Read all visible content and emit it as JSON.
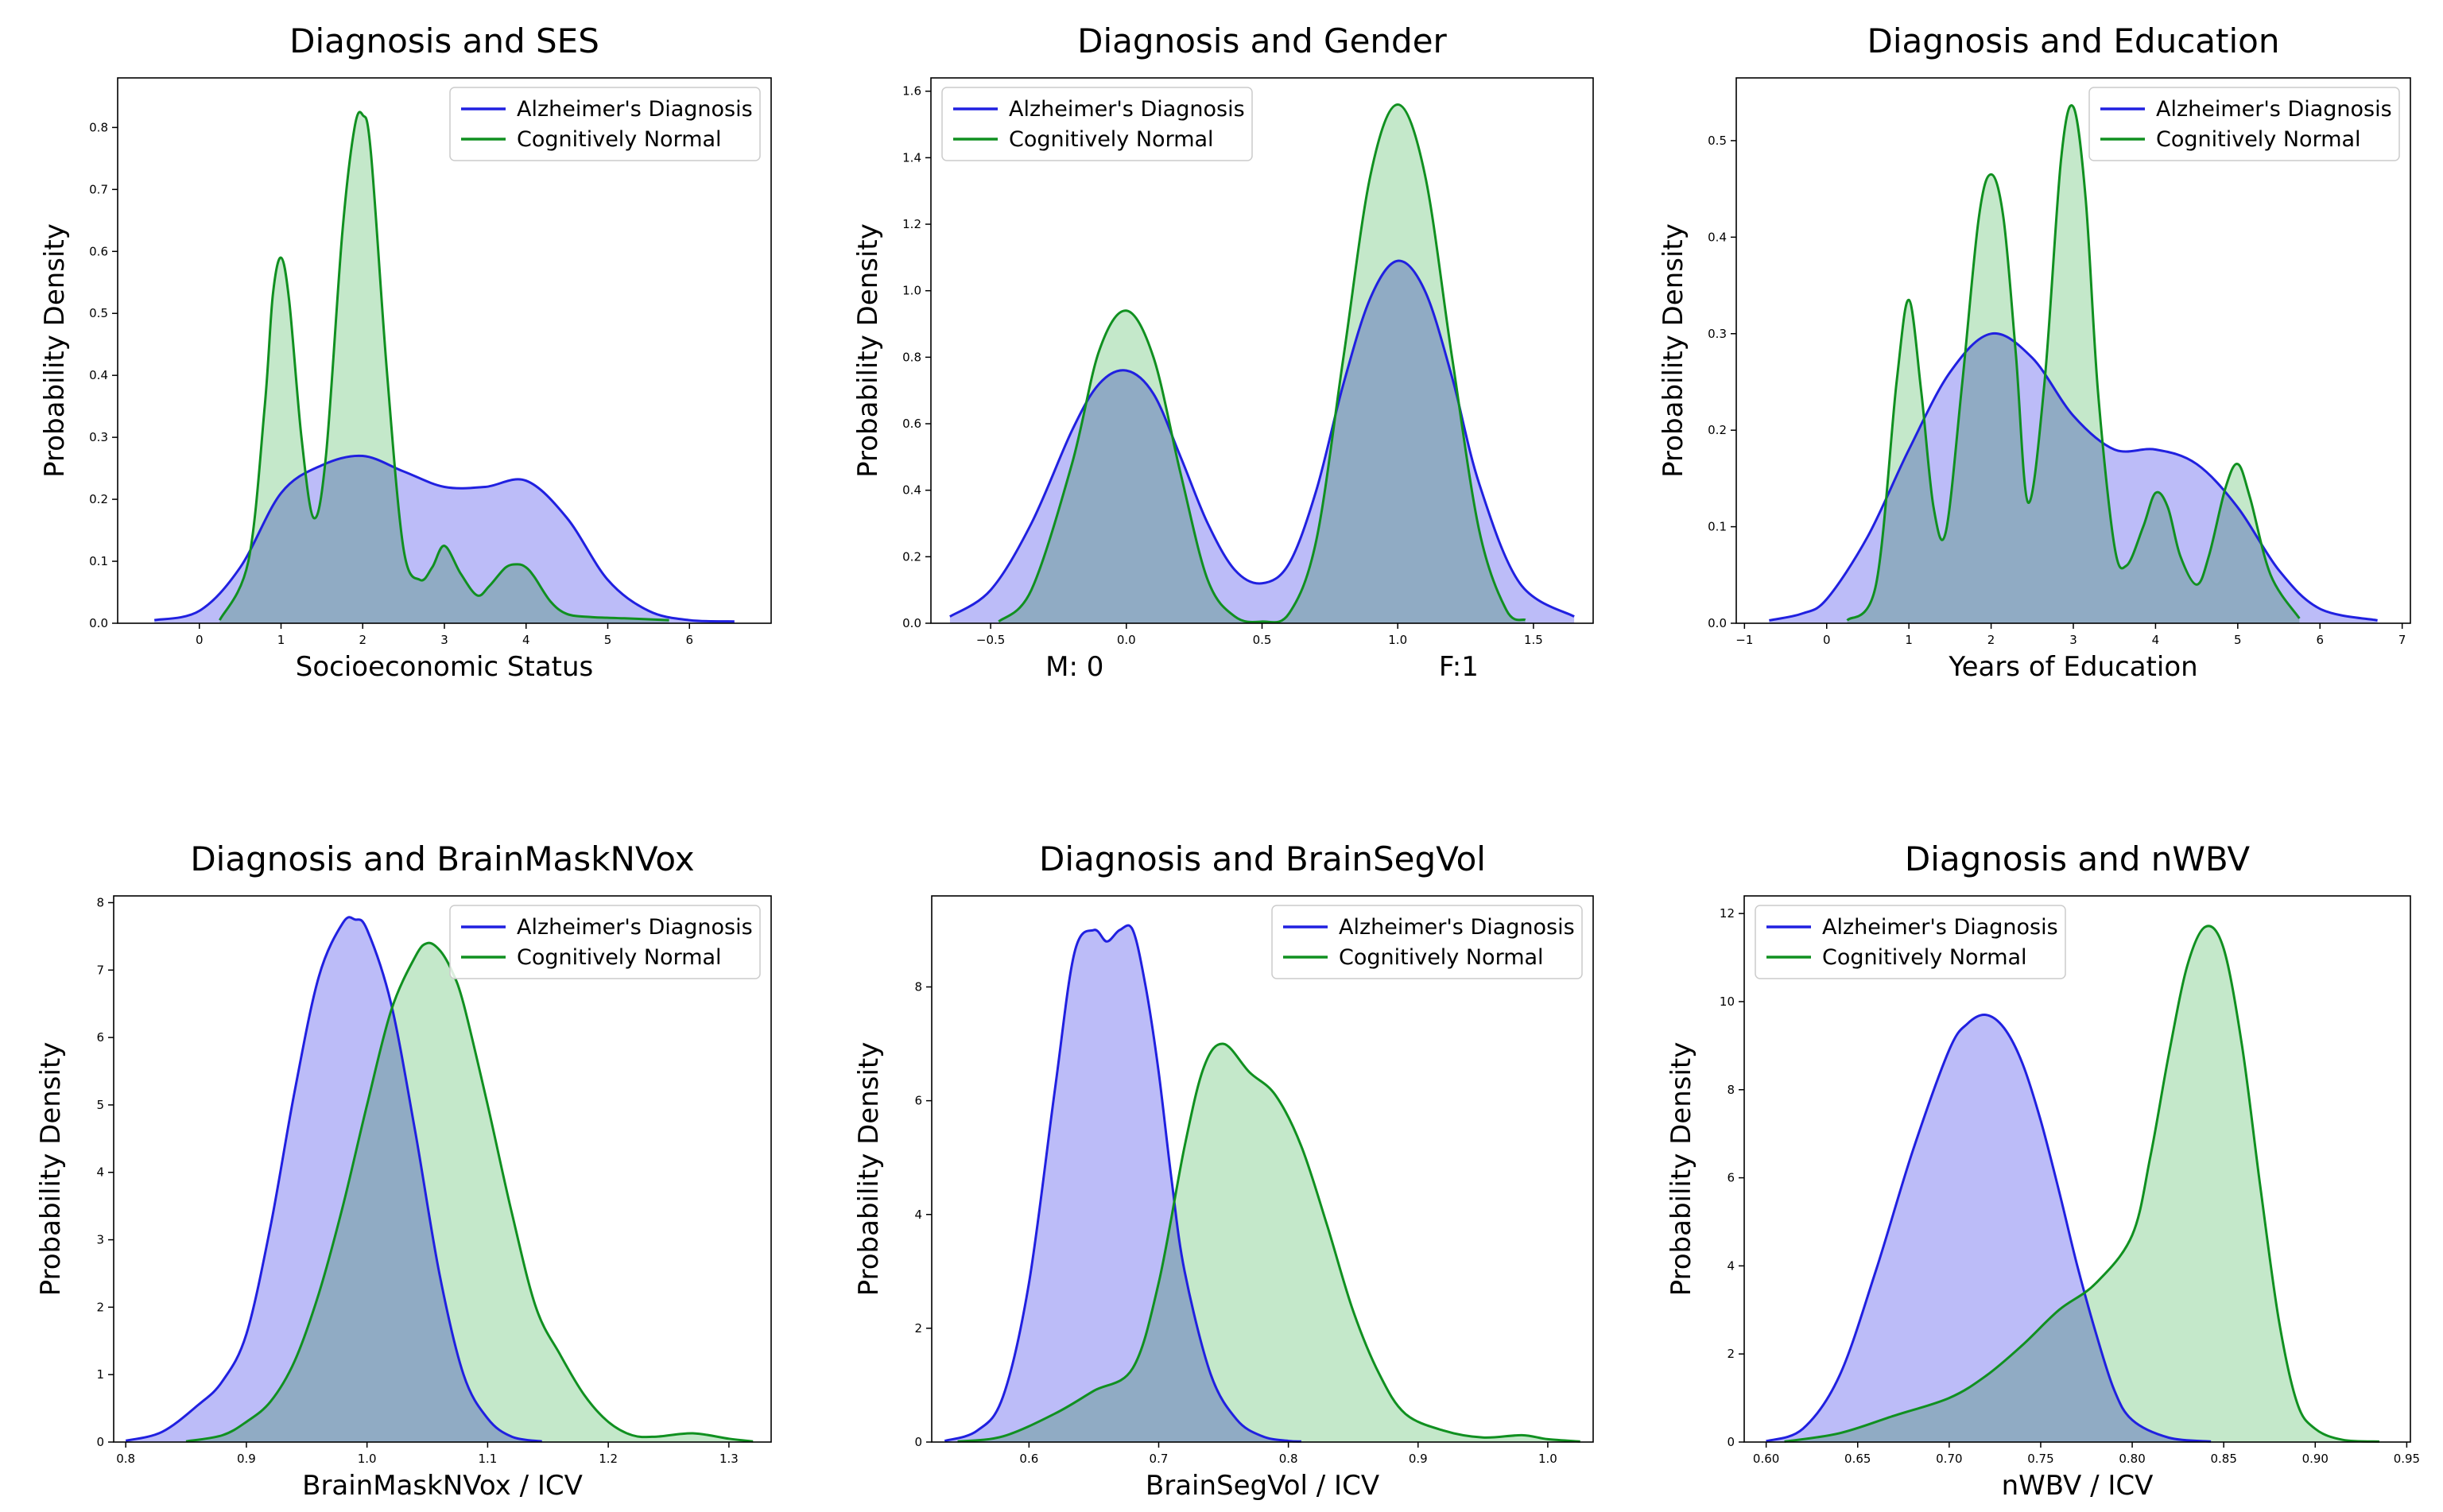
{
  "colors": {
    "ad": "#2020e0",
    "ad_fill": "#b8b8f8",
    "cn": "#109020",
    "cn_fill": "#b0e0b8"
  },
  "chart_data": [
    {
      "type": "area",
      "title": "Diagnosis and SES",
      "xlabel": "Socioeconomic Status",
      "ylabel": "Probability Density",
      "xlim": [
        -1,
        7
      ],
      "ylim": [
        0,
        0.88
      ],
      "xticks": [
        0,
        1,
        2,
        3,
        4,
        5,
        6
      ],
      "xtick_labels": [
        "0",
        "1",
        "2",
        "3",
        "4",
        "5",
        "6"
      ],
      "yticks": [
        0,
        0.1,
        0.2,
        0.3,
        0.4,
        0.5,
        0.6,
        0.7,
        0.8
      ],
      "ytick_labels": [
        "0.0",
        "0.1",
        "0.2",
        "0.3",
        "0.4",
        "0.5",
        "0.6",
        "0.7",
        "0.8"
      ],
      "legend": [
        "Alzheimer's Diagnosis",
        "Cognitively Normal"
      ],
      "legend_loc": "top-right",
      "series": [
        {
          "name": "Alzheimer's Diagnosis",
          "x": [
            -0.55,
            0,
            0.5,
            1,
            1.5,
            2,
            2.5,
            3,
            3.5,
            4,
            4.5,
            5,
            5.5,
            6,
            6.55
          ],
          "y": [
            0.005,
            0.02,
            0.09,
            0.21,
            0.255,
            0.27,
            0.245,
            0.22,
            0.22,
            0.23,
            0.17,
            0.07,
            0.02,
            0.005,
            0.003
          ]
        },
        {
          "name": "Cognitively Normal",
          "x": [
            0.25,
            0.6,
            0.8,
            0.9,
            1,
            1.1,
            1.25,
            1.4,
            1.55,
            1.75,
            1.9,
            2,
            2.1,
            2.3,
            2.5,
            2.7,
            2.85,
            3,
            3.2,
            3.4,
            3.55,
            3.75,
            3.9,
            4,
            4.1,
            4.3,
            4.5,
            4.8,
            5.2,
            5.75
          ],
          "y": [
            0.005,
            0.1,
            0.35,
            0.53,
            0.59,
            0.52,
            0.3,
            0.17,
            0.27,
            0.63,
            0.8,
            0.82,
            0.76,
            0.4,
            0.12,
            0.07,
            0.09,
            0.125,
            0.08,
            0.045,
            0.06,
            0.09,
            0.095,
            0.09,
            0.075,
            0.035,
            0.015,
            0.01,
            0.008,
            0.005
          ]
        }
      ]
    },
    {
      "type": "area",
      "title": "Diagnosis and Gender",
      "xlabel": "M: 0                                       F:1",
      "ylabel": "Probability Density",
      "xlim": [
        -0.72,
        1.72
      ],
      "ylim": [
        0,
        1.64
      ],
      "xticks": [
        -0.5,
        0,
        0.5,
        1,
        1.5
      ],
      "xtick_labels": [
        "−0.5",
        "0.0",
        "0.5",
        "1.0",
        "1.5"
      ],
      "yticks": [
        0,
        0.2,
        0.4,
        0.6,
        0.8,
        1.0,
        1.2,
        1.4,
        1.6
      ],
      "ytick_labels": [
        "0.0",
        "0.2",
        "0.4",
        "0.6",
        "0.8",
        "1.0",
        "1.2",
        "1.4",
        "1.6"
      ],
      "legend": [
        "Alzheimer's Diagnosis",
        "Cognitively Normal"
      ],
      "legend_loc": "top-left",
      "series": [
        {
          "name": "Alzheimer's Diagnosis",
          "x": [
            -0.65,
            -0.5,
            -0.35,
            -0.2,
            -0.1,
            0,
            0.1,
            0.2,
            0.3,
            0.4,
            0.5,
            0.6,
            0.7,
            0.8,
            0.9,
            1,
            1.1,
            1.2,
            1.3,
            1.45,
            1.65
          ],
          "y": [
            0.02,
            0.1,
            0.3,
            0.58,
            0.72,
            0.76,
            0.69,
            0.5,
            0.3,
            0.16,
            0.12,
            0.18,
            0.4,
            0.72,
            0.98,
            1.09,
            1.0,
            0.74,
            0.42,
            0.12,
            0.02
          ]
        },
        {
          "name": "Cognitively Normal",
          "x": [
            -0.47,
            -0.35,
            -0.2,
            -0.1,
            0,
            0.1,
            0.2,
            0.3,
            0.4,
            0.5,
            0.6,
            0.7,
            0.8,
            0.9,
            1,
            1.1,
            1.2,
            1.3,
            1.4,
            1.47
          ],
          "y": [
            0.005,
            0.1,
            0.48,
            0.82,
            0.94,
            0.8,
            0.45,
            0.13,
            0.02,
            0.005,
            0.03,
            0.25,
            0.8,
            1.35,
            1.56,
            1.35,
            0.8,
            0.28,
            0.04,
            0.01
          ]
        }
      ]
    },
    {
      "type": "area",
      "title": "Diagnosis and Education",
      "xlabel": "Years of Education",
      "ylabel": "Probability Density",
      "xlim": [
        -1.1,
        7.1
      ],
      "ylim": [
        0,
        0.565
      ],
      "xticks": [
        -1,
        0,
        1,
        2,
        3,
        4,
        5,
        6,
        7
      ],
      "xtick_labels": [
        "−1",
        "0",
        "1",
        "2",
        "3",
        "4",
        "5",
        "6",
        "7"
      ],
      "yticks": [
        0,
        0.1,
        0.2,
        0.3,
        0.4,
        0.5
      ],
      "ytick_labels": [
        "0.0",
        "0.1",
        "0.2",
        "0.3",
        "0.4",
        "0.5"
      ],
      "legend": [
        "Alzheimer's Diagnosis",
        "Cognitively Normal"
      ],
      "legend_loc": "top-right",
      "series": [
        {
          "name": "Alzheimer's Diagnosis",
          "x": [
            -0.7,
            -0.3,
            0,
            0.5,
            1,
            1.5,
            2,
            2.5,
            3,
            3.5,
            4,
            4.5,
            5,
            5.5,
            6,
            6.7
          ],
          "y": [
            0.003,
            0.01,
            0.025,
            0.09,
            0.18,
            0.26,
            0.3,
            0.275,
            0.215,
            0.18,
            0.18,
            0.165,
            0.12,
            0.055,
            0.015,
            0.003
          ]
        },
        {
          "name": "Cognitively Normal",
          "x": [
            0.25,
            0.6,
            0.85,
            1,
            1.15,
            1.3,
            1.45,
            1.65,
            1.85,
            2,
            2.15,
            2.3,
            2.45,
            2.65,
            2.85,
            3,
            3.15,
            3.3,
            3.5,
            3.65,
            3.85,
            4,
            4.15,
            4.3,
            4.5,
            4.65,
            4.85,
            5,
            5.15,
            5.4,
            5.75
          ],
          "y": [
            0.003,
            0.04,
            0.25,
            0.335,
            0.24,
            0.12,
            0.095,
            0.25,
            0.42,
            0.465,
            0.42,
            0.28,
            0.125,
            0.25,
            0.48,
            0.535,
            0.44,
            0.24,
            0.08,
            0.06,
            0.1,
            0.135,
            0.12,
            0.07,
            0.04,
            0.07,
            0.14,
            0.165,
            0.13,
            0.05,
            0.005
          ]
        }
      ]
    },
    {
      "type": "area",
      "title": "Diagnosis and BrainMaskNVox",
      "xlabel": "BrainMaskNVox / ICV",
      "ylabel": "Probability Density",
      "xlim": [
        0.79,
        1.335
      ],
      "ylim": [
        0,
        8.1
      ],
      "xticks": [
        0.8,
        0.9,
        1.0,
        1.1,
        1.2,
        1.3
      ],
      "xtick_labels": [
        "0.8",
        "0.9",
        "1.0",
        "1.1",
        "1.2",
        "1.3"
      ],
      "yticks": [
        0,
        1,
        2,
        3,
        4,
        5,
        6,
        7,
        8
      ],
      "ytick_labels": [
        "0",
        "1",
        "2",
        "3",
        "4",
        "5",
        "6",
        "7",
        "8"
      ],
      "legend": [
        "Alzheimer's Diagnosis",
        "Cognitively Normal"
      ],
      "legend_loc": "top-right",
      "series": [
        {
          "name": "Alzheimer's Diagnosis",
          "x": [
            0.8,
            0.83,
            0.86,
            0.88,
            0.9,
            0.92,
            0.94,
            0.96,
            0.98,
            0.99,
            1.0,
            1.02,
            1.04,
            1.06,
            1.08,
            1.1,
            1.12,
            1.145
          ],
          "y": [
            0.02,
            0.15,
            0.55,
            0.9,
            1.6,
            3.2,
            5.2,
            6.9,
            7.7,
            7.75,
            7.6,
            6.5,
            4.6,
            2.5,
            1.0,
            0.35,
            0.08,
            0.01
          ]
        },
        {
          "name": "Cognitively Normal",
          "x": [
            0.85,
            0.88,
            0.9,
            0.92,
            0.94,
            0.96,
            0.98,
            1.0,
            1.02,
            1.04,
            1.05,
            1.06,
            1.07,
            1.08,
            1.1,
            1.12,
            1.14,
            1.16,
            1.18,
            1.2,
            1.22,
            1.24,
            1.27,
            1.3,
            1.32
          ],
          "y": [
            0.01,
            0.1,
            0.3,
            0.6,
            1.2,
            2.2,
            3.5,
            5.0,
            6.4,
            7.2,
            7.4,
            7.3,
            7.0,
            6.5,
            5.0,
            3.4,
            2.0,
            1.3,
            0.7,
            0.3,
            0.1,
            0.08,
            0.13,
            0.05,
            0.01
          ]
        }
      ]
    },
    {
      "type": "area",
      "title": "Diagnosis and BrainSegVol",
      "xlabel": "BrainSegVol / ICV",
      "ylabel": "Probability Density",
      "xlim": [
        0.525,
        1.035
      ],
      "ylim": [
        0,
        9.6
      ],
      "xticks": [
        0.6,
        0.7,
        0.8,
        0.9,
        1.0
      ],
      "xtick_labels": [
        "0.6",
        "0.7",
        "0.8",
        "0.9",
        "1.0"
      ],
      "yticks": [
        0,
        2,
        4,
        6,
        8
      ],
      "ytick_labels": [
        "0",
        "2",
        "4",
        "6",
        "8"
      ],
      "legend": [
        "Alzheimer's Diagnosis",
        "Cognitively Normal"
      ],
      "legend_loc": "top-right",
      "series": [
        {
          "name": "Alzheimer's Diagnosis",
          "x": [
            0.535,
            0.56,
            0.58,
            0.6,
            0.62,
            0.635,
            0.65,
            0.66,
            0.67,
            0.68,
            0.69,
            0.7,
            0.71,
            0.72,
            0.74,
            0.76,
            0.78,
            0.8,
            0.81
          ],
          "y": [
            0.02,
            0.2,
            0.8,
            2.8,
            6.2,
            8.6,
            9.0,
            8.8,
            9.0,
            9.0,
            8.0,
            6.5,
            4.6,
            3.0,
            1.2,
            0.4,
            0.1,
            0.02,
            0.01
          ]
        },
        {
          "name": "Cognitively Normal",
          "x": [
            0.545,
            0.58,
            0.62,
            0.65,
            0.68,
            0.7,
            0.72,
            0.735,
            0.75,
            0.77,
            0.79,
            0.81,
            0.83,
            0.85,
            0.87,
            0.89,
            0.92,
            0.95,
            0.98,
            1.0,
            1.025
          ],
          "y": [
            0.01,
            0.1,
            0.5,
            0.9,
            1.3,
            2.8,
            5.2,
            6.6,
            7.0,
            6.5,
            6.1,
            5.2,
            3.8,
            2.3,
            1.2,
            0.5,
            0.2,
            0.08,
            0.12,
            0.05,
            0.01
          ]
        }
      ]
    },
    {
      "type": "area",
      "title": "Diagnosis and nWBV",
      "xlabel": "nWBV / ICV",
      "ylabel": "Probability Density",
      "xlim": [
        0.588,
        0.952
      ],
      "ylim": [
        0,
        12.4
      ],
      "xticks": [
        0.6,
        0.65,
        0.7,
        0.75,
        0.8,
        0.85,
        0.9,
        0.95
      ],
      "xtick_labels": [
        "0.60",
        "0.65",
        "0.70",
        "0.75",
        "0.80",
        "0.85",
        "0.90",
        "0.95"
      ],
      "yticks": [
        0,
        2,
        4,
        6,
        8,
        10,
        12
      ],
      "ytick_labels": [
        "0",
        "2",
        "4",
        "6",
        "8",
        "10",
        "12"
      ],
      "legend": [
        "Alzheimer's Diagnosis",
        "Cognitively Normal"
      ],
      "legend_loc": "top-left",
      "series": [
        {
          "name": "Alzheimer's Diagnosis",
          "x": [
            0.6,
            0.62,
            0.64,
            0.66,
            0.68,
            0.7,
            0.71,
            0.72,
            0.73,
            0.74,
            0.75,
            0.76,
            0.77,
            0.78,
            0.79,
            0.8,
            0.82,
            0.843
          ],
          "y": [
            0.02,
            0.3,
            1.5,
            3.9,
            6.6,
            8.9,
            9.5,
            9.7,
            9.4,
            8.6,
            7.3,
            5.7,
            4.0,
            2.5,
            1.2,
            0.5,
            0.1,
            0.01
          ]
        },
        {
          "name": "Cognitively Normal",
          "x": [
            0.61,
            0.64,
            0.67,
            0.7,
            0.72,
            0.74,
            0.76,
            0.78,
            0.8,
            0.81,
            0.82,
            0.83,
            0.84,
            0.85,
            0.86,
            0.87,
            0.88,
            0.89,
            0.9,
            0.915,
            0.935
          ],
          "y": [
            0.01,
            0.2,
            0.6,
            1.0,
            1.5,
            2.2,
            3.0,
            3.6,
            4.7,
            6.5,
            8.8,
            10.8,
            11.7,
            11.2,
            9.0,
            5.8,
            2.8,
            0.9,
            0.3,
            0.05,
            0.01
          ]
        }
      ]
    }
  ]
}
